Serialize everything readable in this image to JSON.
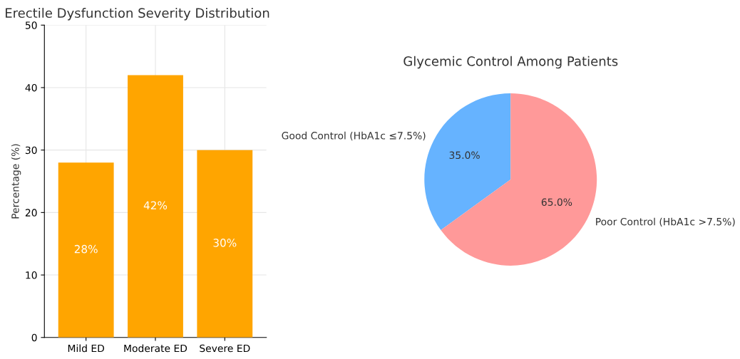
{
  "chart_data": [
    {
      "type": "bar",
      "title": "Erectile Dysfunction Severity Distribution",
      "ylabel": "Percentage (%)",
      "categories": [
        "Mild ED",
        "Moderate ED",
        "Severe ED"
      ],
      "values": [
        28,
        42,
        30
      ],
      "color": "#ffa500",
      "ylim": [
        0,
        50
      ],
      "yticks": [
        0,
        10,
        20,
        30,
        40,
        50
      ],
      "grid": true,
      "value_labels": [
        "28%",
        "42%",
        "30%"
      ]
    },
    {
      "type": "pie",
      "title": "Glycemic Control Among Patients",
      "categories": [
        "Good Control (HbA1c ≤7.5%)",
        "Poor Control (HbA1c >7.5%)"
      ],
      "values": [
        35,
        65
      ],
      "colors": [
        "#66b3ff",
        "#ff9999"
      ],
      "value_labels": [
        "35.0%",
        "65.0%"
      ]
    }
  ]
}
